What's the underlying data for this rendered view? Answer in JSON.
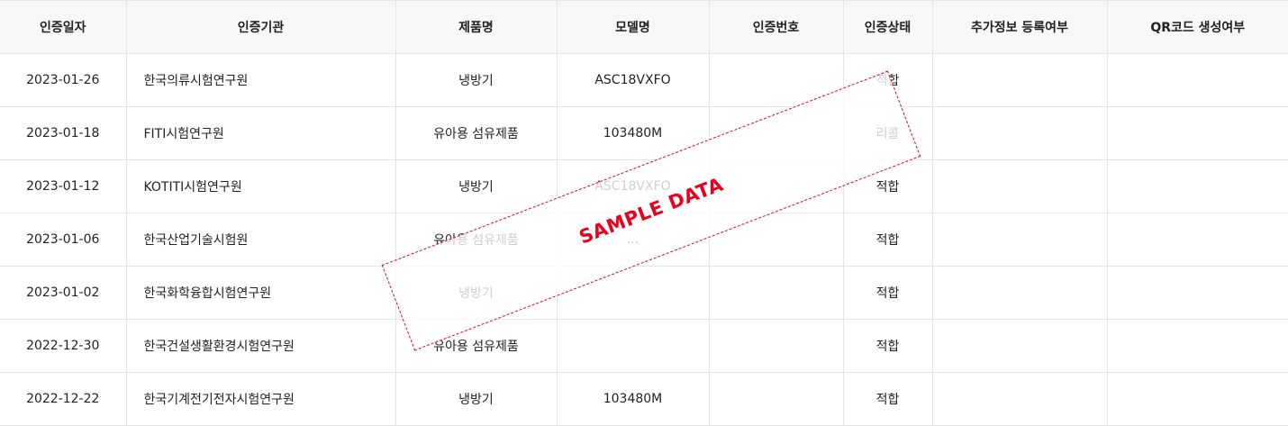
{
  "table": {
    "headers": [
      "인증일자",
      "인증기관",
      "제품명",
      "모델명",
      "인증번호",
      "인증상태",
      "추가정보 등록여부",
      "QR코드 생성여부"
    ],
    "rows": [
      [
        "2023-01-26",
        "한국의류시험연구원",
        "냉방기",
        "ASC18VXFO",
        "",
        "적합",
        "",
        ""
      ],
      [
        "2023-01-18",
        "FITI시험연구원",
        "유아용 섬유제품",
        "103480M",
        "",
        "리콜",
        "",
        ""
      ],
      [
        "2023-01-12",
        "KOTITI시험연구원",
        "냉방기",
        "ASC18VXFO",
        "",
        "적합",
        "",
        ""
      ],
      [
        "2023-01-06",
        "한국산업기술시험원",
        "유아용 섬유제품",
        "...",
        "",
        "적합",
        "",
        ""
      ],
      [
        "2023-01-02",
        "한국화학융합시험연구원",
        "냉방기",
        "",
        "",
        "적합",
        "",
        ""
      ],
      [
        "2022-12-30",
        "한국건설생활환경시험연구원",
        "유아용 섬유제품",
        "",
        "",
        "적합",
        "",
        ""
      ],
      [
        "2022-12-22",
        "한국기계전기전자시험연구원",
        "냉방기",
        "103480M",
        "",
        "적합",
        "",
        ""
      ]
    ]
  },
  "watermark": {
    "text": "SAMPLE DATA",
    "color": "#e8001c"
  },
  "colors": {
    "header_bg": "#f7f7f8",
    "border": "#e4e4e4",
    "text": "#222222"
  }
}
